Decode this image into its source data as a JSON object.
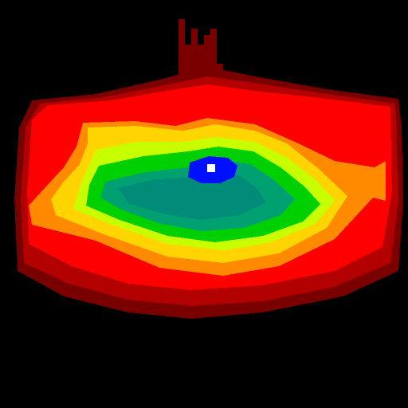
{
  "image": {
    "kind": "false-color intensity heatmap",
    "background_color": "#000000",
    "pixelated": true,
    "colormap": [
      {
        "level": "outer-dark",
        "color": "#7a0000"
      },
      {
        "level": "mid-red",
        "color": "#b30000"
      },
      {
        "level": "red",
        "color": "#ff0000"
      },
      {
        "level": "orange",
        "color": "#ff8a00"
      },
      {
        "level": "yellow",
        "color": "#ffd400"
      },
      {
        "level": "yellow-green",
        "color": "#c8ff00"
      },
      {
        "level": "green",
        "color": "#00d000"
      },
      {
        "level": "teal",
        "color": "#00a070"
      },
      {
        "level": "blue",
        "color": "#0010ff"
      },
      {
        "level": "peak",
        "color": "#ffffff"
      }
    ]
  }
}
